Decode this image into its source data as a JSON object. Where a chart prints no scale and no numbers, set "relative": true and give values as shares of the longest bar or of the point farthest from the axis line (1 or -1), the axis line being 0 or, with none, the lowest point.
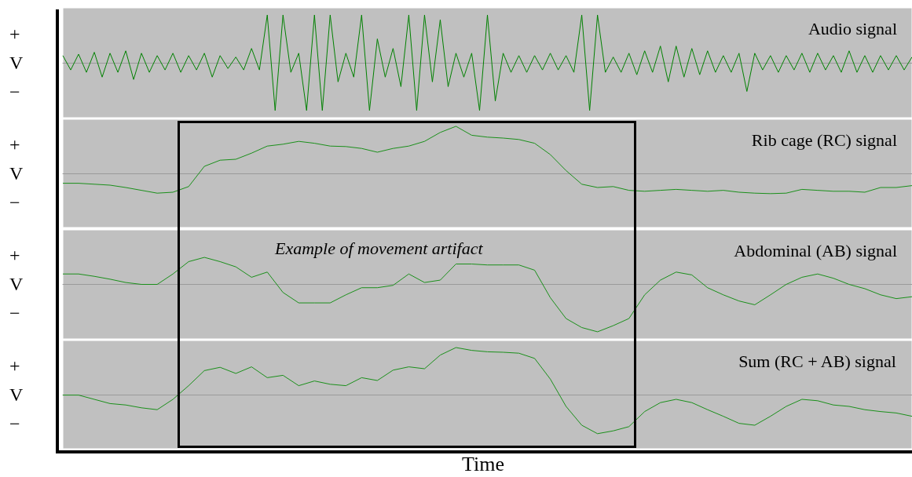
{
  "chart_data": [
    {
      "type": "line",
      "title": "Audio signal",
      "ylabel": "+\nV\n−",
      "relative": true,
      "categories": [
        null,
        null,
        null,
        null,
        null,
        null,
        null,
        null,
        null,
        null,
        null,
        null,
        null,
        null,
        null,
        null,
        null,
        null,
        null,
        null,
        null,
        null,
        null,
        null,
        null,
        null,
        null,
        null,
        null,
        null,
        null,
        null,
        null,
        null,
        null,
        null,
        null,
        null,
        null,
        null,
        null,
        null,
        null,
        null,
        null,
        null,
        null,
        null,
        null,
        null,
        null,
        null,
        null,
        null,
        null,
        null,
        null,
        null,
        null,
        null,
        null,
        null,
        null,
        null,
        null,
        null,
        null,
        null,
        null,
        null,
        null,
        null,
        null,
        null,
        null,
        null,
        null,
        null,
        null,
        null,
        null,
        null,
        null,
        null,
        null,
        null,
        null,
        null,
        null,
        null,
        null,
        null,
        null,
        null,
        null,
        null,
        null,
        null,
        null,
        null,
        null,
        null,
        null,
        null,
        null,
        null,
        null,
        null,
        null
      ],
      "series": [
        {
          "color": "#008000",
          "values": [
            0.15,
            -0.15,
            0.18,
            -0.2,
            0.22,
            -0.3,
            0.2,
            -0.2,
            0.25,
            -0.35,
            0.2,
            -0.2,
            0.15,
            -0.15,
            0.2,
            -0.2,
            0.15,
            -0.15,
            0.2,
            -0.3,
            0.15,
            -0.12,
            0.12,
            -0.15,
            0.3,
            -0.15,
            1,
            -1,
            1,
            -0.2,
            0.2,
            -1,
            1,
            -1,
            1,
            -0.4,
            0.2,
            -0.3,
            1,
            -1,
            0.5,
            -0.3,
            0.3,
            -0.5,
            1,
            -1,
            1,
            -0.4,
            0.9,
            -0.5,
            0.2,
            -0.3,
            0.2,
            -1,
            1,
            -0.8,
            0.2,
            -0.2,
            0.15,
            -0.2,
            0.15,
            -0.15,
            0.2,
            -0.15,
            0.15,
            -0.2,
            1,
            -1,
            1,
            -0.2,
            0.12,
            -0.2,
            0.2,
            -0.25,
            0.25,
            -0.2,
            0.35,
            -0.4,
            0.35,
            -0.3,
            0.3,
            -0.25,
            0.25,
            -0.2,
            0.15,
            -0.2,
            0.2,
            -0.6,
            0.2,
            -0.15,
            0.15,
            -0.2,
            0.15,
            -0.15,
            0.2,
            -0.2,
            0.2,
            -0.15,
            0.15,
            -0.2,
            0.25,
            -0.2,
            0.15,
            -0.2,
            0.15,
            -0.15,
            0.15,
            -0.15,
            0.12
          ]
        }
      ]
    },
    {
      "type": "line",
      "title": "Rib cage (RC) signal",
      "ylabel": "+\nV\n−",
      "relative": true,
      "categories": [
        null,
        null,
        null,
        null,
        null,
        null,
        null,
        null,
        null,
        null,
        null,
        null,
        null,
        null,
        null,
        null,
        null,
        null,
        null,
        null,
        null,
        null,
        null,
        null,
        null,
        null,
        null,
        null,
        null,
        null,
        null,
        null,
        null,
        null,
        null,
        null,
        null,
        null,
        null,
        null,
        null,
        null,
        null,
        null,
        null,
        null,
        null,
        null,
        null,
        null,
        null,
        null,
        null,
        null,
        null
      ],
      "series": [
        {
          "color": "#1a8f1a",
          "values": [
            -0.21,
            -0.21,
            -0.23,
            -0.25,
            -0.3,
            -0.36,
            -0.42,
            -0.4,
            -0.28,
            0.15,
            0.28,
            0.3,
            0.43,
            0.58,
            0.62,
            0.68,
            0.64,
            0.58,
            0.57,
            0.53,
            0.45,
            0.53,
            0.58,
            0.68,
            0.87,
            1,
            0.81,
            0.77,
            0.75,
            0.72,
            0.64,
            0.4,
            0.06,
            -0.23,
            -0.3,
            -0.28,
            -0.36,
            -0.38,
            -0.36,
            -0.34,
            -0.36,
            -0.38,
            -0.36,
            -0.4,
            -0.42,
            -0.43,
            -0.42,
            -0.34,
            -0.36,
            -0.38,
            -0.38,
            -0.4,
            -0.3,
            -0.3,
            -0.26
          ]
        }
      ]
    },
    {
      "type": "line",
      "title": "Abdominal (AB) signal",
      "ylabel": "+\nV\n−",
      "relative": true,
      "annotations": [
        "Example of movement artifact"
      ],
      "categories": [
        null,
        null,
        null,
        null,
        null,
        null,
        null,
        null,
        null,
        null,
        null,
        null,
        null,
        null,
        null,
        null,
        null,
        null,
        null,
        null,
        null,
        null,
        null,
        null,
        null,
        null,
        null,
        null,
        null,
        null,
        null,
        null,
        null,
        null,
        null,
        null,
        null,
        null,
        null,
        null,
        null,
        null,
        null,
        null,
        null,
        null,
        null,
        null,
        null,
        null,
        null,
        null,
        null,
        null,
        null
      ],
      "series": [
        {
          "color": "#1a8f1a",
          "values": [
            0.22,
            0.22,
            0.17,
            0.11,
            0.04,
            0,
            0,
            0.22,
            0.48,
            0.57,
            0.48,
            0.37,
            0.15,
            0.26,
            -0.17,
            -0.39,
            -0.39,
            -0.39,
            -0.22,
            -0.07,
            -0.07,
            -0.02,
            0.22,
            0.04,
            0.09,
            0.43,
            0.43,
            0.41,
            0.41,
            0.41,
            0.3,
            -0.28,
            -0.72,
            -0.91,
            -1,
            -0.87,
            -0.72,
            -0.22,
            0.09,
            0.26,
            0.2,
            -0.07,
            -0.22,
            -0.35,
            -0.43,
            -0.22,
            0,
            0.15,
            0.22,
            0.13,
            0,
            -0.09,
            -0.22,
            -0.3,
            -0.26
          ]
        }
      ]
    },
    {
      "type": "line",
      "title": "Sum (RC + AB) signal",
      "ylabel": "+\nV\n−",
      "xlabel": "Time",
      "relative": true,
      "categories": [
        null,
        null,
        null,
        null,
        null,
        null,
        null,
        null,
        null,
        null,
        null,
        null,
        null,
        null,
        null,
        null,
        null,
        null,
        null,
        null,
        null,
        null,
        null,
        null,
        null,
        null,
        null,
        null,
        null,
        null,
        null,
        null,
        null,
        null,
        null,
        null,
        null,
        null,
        null,
        null,
        null,
        null,
        null,
        null,
        null,
        null,
        null,
        null,
        null,
        null,
        null,
        null,
        null,
        null,
        null
      ],
      "series": [
        {
          "color": "#1a8f1a",
          "values": [
            -0.01,
            -0.01,
            -0.1,
            -0.19,
            -0.22,
            -0.28,
            -0.32,
            -0.1,
            0.19,
            0.51,
            0.58,
            0.45,
            0.59,
            0.36,
            0.41,
            0.19,
            0.29,
            0.22,
            0.19,
            0.36,
            0.3,
            0.52,
            0.59,
            0.55,
            0.84,
            1,
            0.94,
            0.91,
            0.9,
            0.88,
            0.77,
            0.33,
            -0.25,
            -0.65,
            -0.83,
            -0.77,
            -0.68,
            -0.36,
            -0.17,
            -0.1,
            -0.17,
            -0.32,
            -0.46,
            -0.61,
            -0.65,
            -0.46,
            -0.25,
            -0.1,
            -0.13,
            -0.22,
            -0.25,
            -0.32,
            -0.36,
            -0.39,
            -0.46
          ]
        }
      ]
    }
  ]
}
